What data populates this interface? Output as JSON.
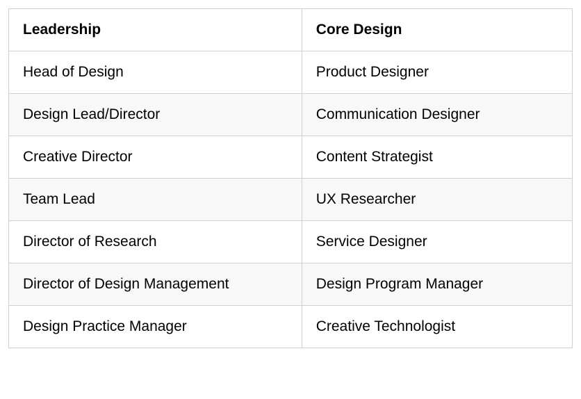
{
  "table": {
    "columns": [
      "Leadership",
      "Core Design"
    ],
    "rows": [
      [
        "Head of Design",
        "Product Designer"
      ],
      [
        "Design Lead/Director",
        "Communication Designer"
      ],
      [
        "Creative Director",
        "Content Strategist"
      ],
      [
        "Team Lead",
        "UX Researcher"
      ],
      [
        "Director of Research",
        "Service Designer"
      ],
      [
        "Director of Design Management",
        "Design Program Manager"
      ],
      [
        "Design Practice Manager",
        "Creative Technologist"
      ]
    ],
    "header_bg": "#ffffff",
    "row_odd_bg": "#ffffff",
    "row_even_bg": "#f8f8f8",
    "border_color": "#d0d0d0",
    "text_color": "#000000",
    "header_fontsize": 21,
    "header_fontweight": 700,
    "cell_fontsize": 21,
    "cell_fontweight": 400,
    "col_widths_pct": [
      52,
      48
    ]
  }
}
